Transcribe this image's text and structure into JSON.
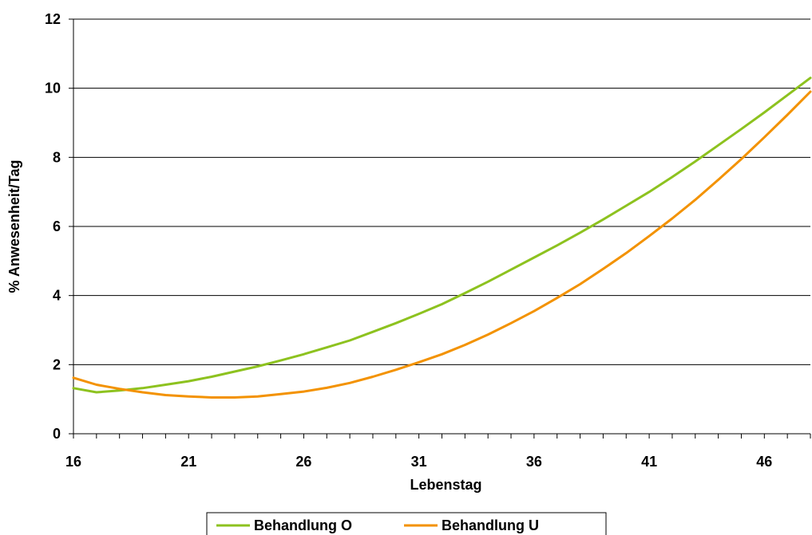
{
  "chart_data": {
    "type": "line",
    "title": "",
    "xlabel": "Lebenstag",
    "ylabel": "% Anwesenheit/Tag",
    "xlim": [
      16,
      48
    ],
    "ylim": [
      0,
      12
    ],
    "x_ticks": [
      "16",
      "21",
      "26",
      "31",
      "36",
      "41",
      "46"
    ],
    "y_ticks": [
      "0",
      "2",
      "4",
      "6",
      "8",
      "10",
      "12"
    ],
    "grid": "horizontal",
    "legend_position": "bottom",
    "x": [
      16,
      17,
      18,
      19,
      20,
      21,
      22,
      23,
      24,
      25,
      26,
      27,
      28,
      29,
      30,
      31,
      32,
      33,
      34,
      35,
      36,
      37,
      38,
      39,
      40,
      41,
      42,
      43,
      44,
      45,
      46,
      47,
      48
    ],
    "series": [
      {
        "name": "Behandlung O",
        "color": "#8dc21f",
        "values": [
          1.32,
          1.2,
          1.25,
          1.32,
          1.42,
          1.52,
          1.65,
          1.8,
          1.95,
          2.12,
          2.3,
          2.5,
          2.7,
          2.95,
          3.2,
          3.47,
          3.75,
          4.07,
          4.4,
          4.75,
          5.1,
          5.45,
          5.82,
          6.2,
          6.6,
          7.0,
          7.43,
          7.88,
          8.35,
          8.82,
          9.3,
          9.8,
          10.3
        ]
      },
      {
        "name": "Behandlung U",
        "color": "#f39200",
        "values": [
          1.62,
          1.42,
          1.3,
          1.2,
          1.12,
          1.08,
          1.05,
          1.05,
          1.08,
          1.15,
          1.22,
          1.33,
          1.47,
          1.65,
          1.85,
          2.07,
          2.3,
          2.57,
          2.87,
          3.2,
          3.55,
          3.93,
          4.33,
          4.77,
          5.23,
          5.72,
          6.23,
          6.77,
          7.35,
          7.95,
          8.58,
          9.23,
          9.9
        ]
      }
    ]
  }
}
